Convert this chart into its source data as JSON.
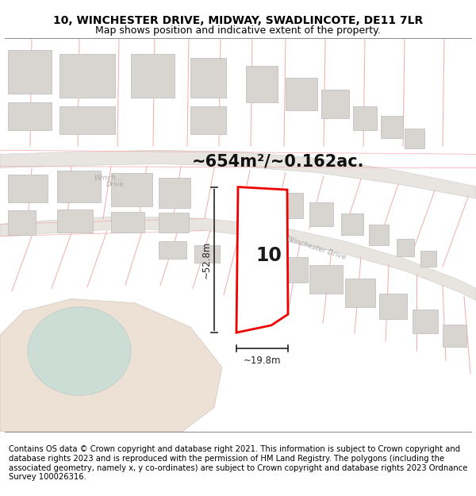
{
  "title_line1": "10, WINCHESTER DRIVE, MIDWAY, SWADLINCOTE, DE11 7LR",
  "title_line2": "Map shows position and indicative extent of the property.",
  "footer_text": "Contains OS data © Crown copyright and database right 2021. This information is subject to Crown copyright and database rights 2023 and is reproduced with the permission of HM Land Registry. The polygons (including the associated geometry, namely x, y co-ordinates) are subject to Crown copyright and database rights 2023 Ordnance Survey 100026316.",
  "area_label": "~654m²/~0.162ac.",
  "width_label": "~19.8m",
  "height_label": "~52.8m",
  "plot_number": "10",
  "map_bg": "#ffffff",
  "lot_line_color": "#f5aaaa",
  "plot_outline_color": "#ee0000",
  "plot_fill": "#ffffff",
  "building_fill": "#d8d5d0",
  "building_outline": "#bbbbbb",
  "road_fill": "#e8e4df",
  "road_line": "#bbbbbb",
  "dim_line_color": "#222222",
  "street_label_color": "#aaaaaa",
  "green_area_color": "#ccddd5",
  "beige_area_color": "#ede0d5",
  "divider_color": "#888888",
  "title_fontsize": 10,
  "subtitle_fontsize": 9,
  "footer_fontsize": 7.2
}
